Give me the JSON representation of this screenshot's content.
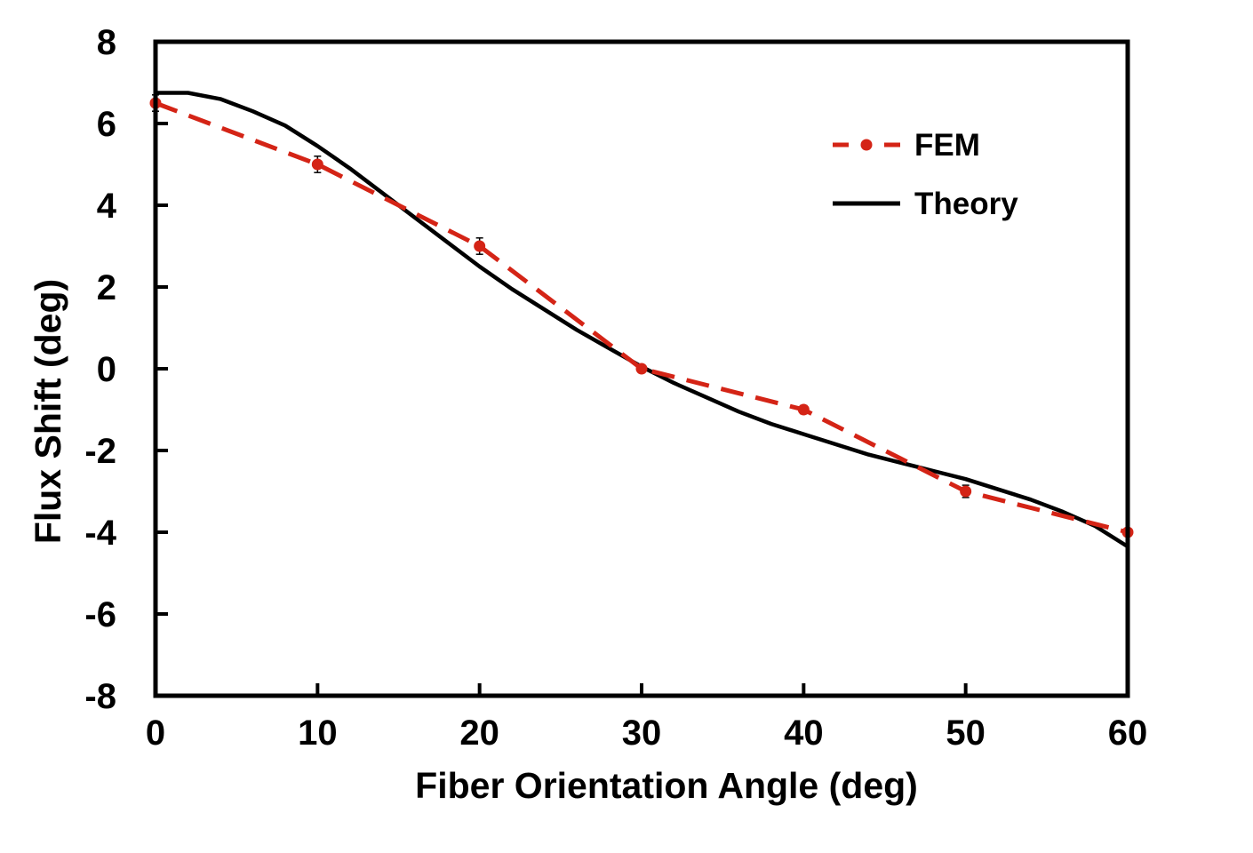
{
  "chart_data": {
    "type": "line",
    "title": "",
    "xlabel": "Fiber Orientation Angle (deg)",
    "ylabel": "Flux Shift (deg)",
    "xlim": [
      0,
      60
    ],
    "ylim": [
      -8,
      8
    ],
    "xticks": [
      0,
      10,
      20,
      30,
      40,
      50,
      60
    ],
    "yticks": [
      8,
      6,
      4,
      2,
      0,
      -2,
      -4,
      -6,
      -8
    ],
    "xtick_labels": [
      "0",
      "10",
      "20",
      "30",
      "40",
      "50",
      "60"
    ],
    "ytick_labels": [
      "8",
      "6",
      "4",
      "2",
      "0",
      "-2",
      "-4",
      "-6",
      "-8"
    ],
    "grid": false,
    "legend_position": "top-right",
    "series": [
      {
        "name": "FEM",
        "style": "dashed-with-markers",
        "color": "#d42416",
        "x": [
          0,
          10,
          20,
          30,
          40,
          50,
          60
        ],
        "y": [
          6.5,
          5.0,
          3.0,
          0.0,
          -1.0,
          -3.0,
          -4.0
        ],
        "error": [
          0.2,
          0.2,
          0.2,
          0.05,
          0.1,
          0.15,
          0.05
        ]
      },
      {
        "name": "Theory",
        "style": "solid",
        "color": "#000000",
        "x": [
          0,
          2,
          4,
          6,
          8,
          10,
          12,
          14,
          16,
          18,
          20,
          22,
          24,
          26,
          28,
          30,
          32,
          34,
          36,
          38,
          40,
          42,
          44,
          46,
          48,
          50,
          52,
          54,
          56,
          58,
          60
        ],
        "y": [
          6.75,
          6.75,
          6.6,
          6.3,
          5.95,
          5.45,
          4.9,
          4.3,
          3.7,
          3.1,
          2.5,
          1.95,
          1.45,
          0.95,
          0.5,
          0.05,
          -0.35,
          -0.7,
          -1.05,
          -1.35,
          -1.6,
          -1.85,
          -2.1,
          -2.3,
          -2.5,
          -2.7,
          -2.95,
          -3.2,
          -3.5,
          -3.85,
          -4.35
        ]
      }
    ]
  }
}
